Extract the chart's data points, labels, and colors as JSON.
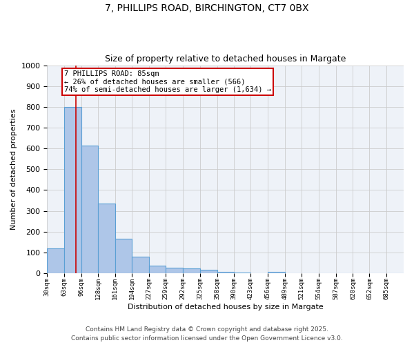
{
  "title": "7, PHILLIPS ROAD, BIRCHINGTON, CT7 0BX",
  "subtitle": "Size of property relative to detached houses in Margate",
  "xlabel": "Distribution of detached houses by size in Margate",
  "ylabel": "Number of detached properties",
  "bin_edges": [
    30,
    63,
    96,
    128,
    161,
    194,
    227,
    259,
    292,
    325,
    358,
    390,
    423,
    456,
    489,
    521,
    554,
    587,
    620,
    652,
    685,
    718
  ],
  "bar_heights": [
    120,
    800,
    615,
    335,
    165,
    80,
    37,
    25,
    22,
    17,
    5,
    2,
    0,
    8,
    0,
    0,
    0,
    0,
    0,
    0,
    0
  ],
  "bar_color": "#aec6e8",
  "bar_edge_color": "#5a9fd4",
  "bar_linewidth": 0.8,
  "property_size": 85,
  "red_line_color": "#cc0000",
  "annotation_line1": "7 PHILLIPS ROAD: 85sqm",
  "annotation_line2": "← 26% of detached houses are smaller (566)",
  "annotation_line3": "74% of semi-detached houses are larger (1,634) →",
  "annotation_box_color": "#ffffff",
  "annotation_box_edge_color": "#cc0000",
  "annotation_fontsize": 7.5,
  "ylim": [
    0,
    1000
  ],
  "yticks": [
    0,
    100,
    200,
    300,
    400,
    500,
    600,
    700,
    800,
    900,
    1000
  ],
  "grid_color": "#cccccc",
  "background_color": "#eef2f8",
  "title_fontsize": 10,
  "subtitle_fontsize": 9,
  "ylabel_fontsize": 8,
  "xlabel_fontsize": 8,
  "footer_line1": "Contains HM Land Registry data © Crown copyright and database right 2025.",
  "footer_line2": "Contains public sector information licensed under the Open Government Licence v3.0.",
  "footer_fontsize": 6.5
}
